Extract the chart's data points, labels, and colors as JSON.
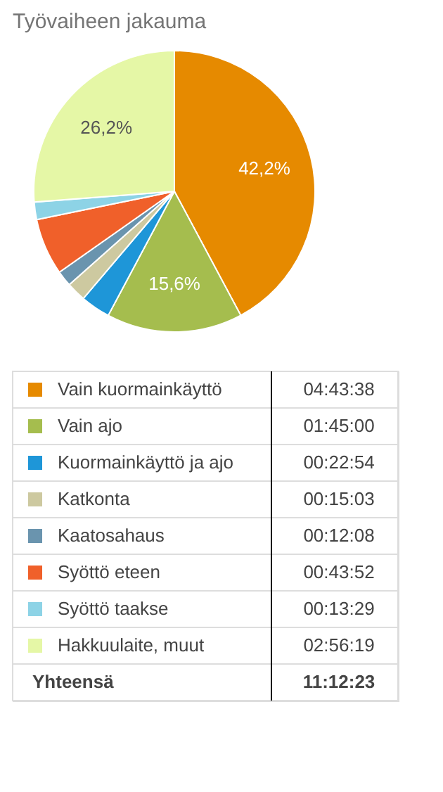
{
  "chart_data": {
    "type": "pie",
    "title": "Työvaiheen jakauma",
    "categories": [
      "Vain kuormainkäyttö",
      "Vain ajo",
      "Kuormainkäyttö ja ajo",
      "Katkonta",
      "Kaatosahaus",
      "Syöttö eteen",
      "Syöttö taakse",
      "Hakkuulaite, muut"
    ],
    "values": [
      42.18,
      15.62,
      3.41,
      2.24,
      1.8,
      6.52,
      2.01,
      26.22
    ],
    "colors": [
      "#e68a00",
      "#a5bd4e",
      "#1e96d8",
      "#cdc9a0",
      "#6a94ae",
      "#f0602a",
      "#8dd3e6",
      "#e5f7a6"
    ],
    "value_labels": [
      "42,2%",
      "15,6%",
      null,
      null,
      null,
      null,
      null,
      "26,2%"
    ],
    "legend": "bottom",
    "annotations": [
      "04:43:38",
      "01:45:00",
      "00:22:54",
      "00:15:03",
      "00:12:08",
      "00:43:52",
      "00:13:29",
      "02:56:19",
      "Yhteensä",
      "11:12:23"
    ]
  }
}
